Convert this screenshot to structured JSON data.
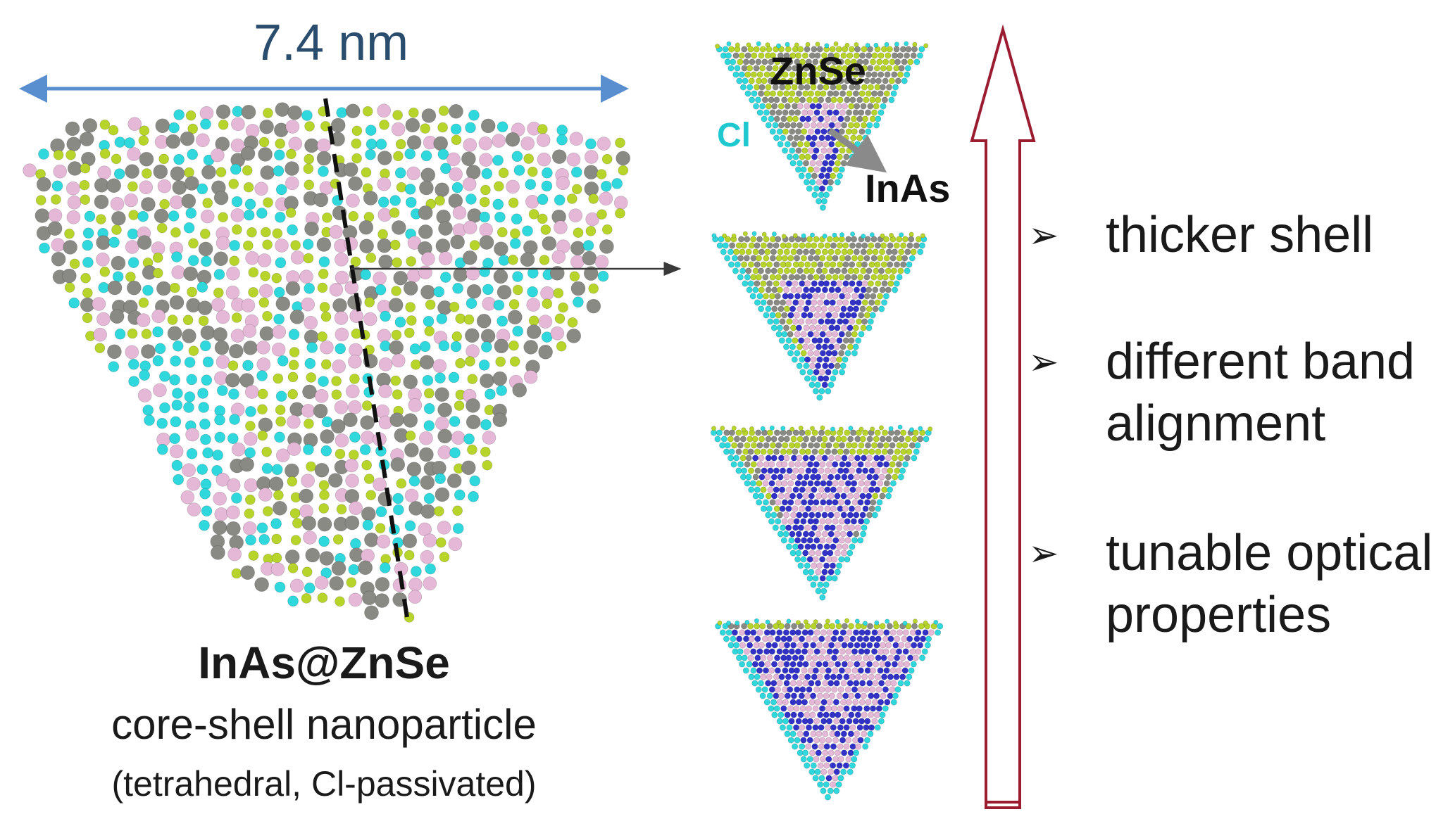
{
  "dimension": {
    "label": "7.4 nm"
  },
  "main_particle": {
    "title": "InAs@ZnSe",
    "subtitle": "core-shell nanoparticle",
    "note": "(tetrahedral, Cl-passivated)"
  },
  "labels": {
    "shell": "ZnSe",
    "ligand": "Cl",
    "core": "InAs"
  },
  "bullets": [
    {
      "marker": "➢",
      "text": "thicker shell"
    },
    {
      "marker": "➢",
      "text": "different band alignment"
    },
    {
      "marker": "➢",
      "text": "tunable optical properties"
    }
  ],
  "colors": {
    "arrow_line": "#5a8fcf",
    "progress_arrow": "#9b1b30",
    "cl_atom": "#2fd8dc",
    "zn_atom": "#8a8a85",
    "se_atom": "#b7d42a",
    "in_atom": "#e6b8d8",
    "as_atom": "#3232c8"
  },
  "core_fractions": [
    0.25,
    0.45,
    0.7,
    0.95
  ]
}
